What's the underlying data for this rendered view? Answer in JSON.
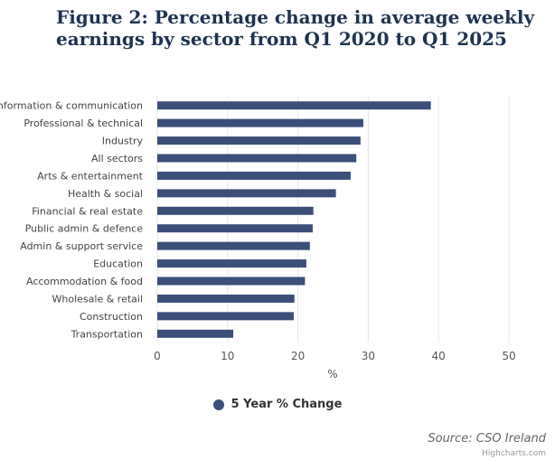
{
  "title": "Figure 2: Percentage change in average weekly earnings by sector from Q1 2020 to Q1 2025",
  "source": "Source: CSO Ireland",
  "credits": "Highcharts.com",
  "colors": {
    "bar": "#3b4f78",
    "grid": "#e6e6e6",
    "title": "#1f3350"
  },
  "chart_data": {
    "type": "bar",
    "orientation": "horizontal",
    "categories": [
      "Information & communication",
      "Professional & technical",
      "Industry",
      "All sectors",
      "Arts & entertainment",
      "Health & social",
      "Financial & real estate",
      "Public admin & defence",
      "Admin & support service",
      "Education",
      "Accommodation & food",
      "Wholesale & retail",
      "Construction",
      "Transportation"
    ],
    "series": [
      {
        "name": "5 Year % Change",
        "values": [
          38.9,
          29.3,
          28.9,
          28.3,
          27.5,
          25.4,
          22.2,
          22.1,
          21.7,
          21.2,
          21.0,
          19.5,
          19.4,
          10.8
        ]
      }
    ],
    "xlabel": "",
    "ylabel": "%",
    "ylim": [
      0,
      50
    ],
    "ticks": [
      0,
      10,
      20,
      30,
      40,
      50
    ],
    "grid": true,
    "legend": "bottom-center"
  }
}
